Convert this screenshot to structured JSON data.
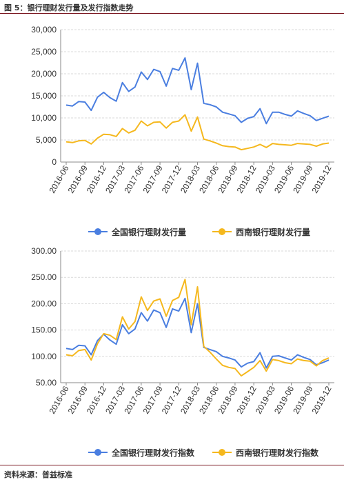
{
  "figure": {
    "title": "图 5：银行理财发行量及发行指数走势",
    "source": "资料来源：普益标准"
  },
  "colors": {
    "national": "#4a7ee0",
    "southwest": "#f5b81e",
    "rule": "#7a1620",
    "grid": "#d9d9d9"
  },
  "chart_data": [
    {
      "type": "line",
      "title": "",
      "xlabel": "",
      "ylabel": "",
      "ylim": [
        0,
        30000
      ],
      "yticks": [
        "0",
        "5,000",
        "10,000",
        "15,000",
        "20,000",
        "25,000",
        "30,000"
      ],
      "ytick_values": [
        0,
        5000,
        10000,
        15000,
        20000,
        25000,
        30000
      ],
      "xtick_labels": [
        "2016-06",
        "2016-09",
        "2016-12",
        "2017-03",
        "2017-06",
        "2017-09",
        "2017-12",
        "2018-03",
        "2018-06",
        "2018-09",
        "2018-12",
        "2019-03",
        "2019-06",
        "2019-09",
        "2019-12"
      ],
      "x": [
        "2016-06",
        "2016-07",
        "2016-08",
        "2016-09",
        "2016-10",
        "2016-11",
        "2016-12",
        "2017-01",
        "2017-02",
        "2017-03",
        "2017-04",
        "2017-05",
        "2017-06",
        "2017-07",
        "2017-08",
        "2017-09",
        "2017-10",
        "2017-11",
        "2017-12",
        "2018-01",
        "2018-02",
        "2018-03",
        "2018-04",
        "2018-05",
        "2018-06",
        "2018-07",
        "2018-08",
        "2018-09",
        "2018-10",
        "2018-11",
        "2018-12",
        "2019-01",
        "2019-02",
        "2019-03",
        "2019-04",
        "2019-05",
        "2019-06",
        "2019-07",
        "2019-08",
        "2019-09",
        "2019-10",
        "2019-11",
        "2019-12"
      ],
      "grid": "horizontal",
      "legend": "bottom",
      "series": [
        {
          "name": "全国银行理财发行量",
          "color": "#4a7ee0",
          "values": [
            12900,
            12700,
            13700,
            13600,
            11700,
            14700,
            15800,
            14600,
            13800,
            18000,
            16000,
            17000,
            20400,
            18700,
            21000,
            20500,
            17200,
            21200,
            20800,
            23600,
            16400,
            22400,
            13300,
            13000,
            12500,
            11300,
            10900,
            10500,
            9000,
            9900,
            10300,
            12100,
            8700,
            11300,
            11300,
            10800,
            10400,
            11600,
            11000,
            10500,
            9400,
            9900,
            10400
          ]
        },
        {
          "name": "西南银行理财发行量",
          "color": "#f5b81e",
          "values": [
            4600,
            4400,
            4800,
            4900,
            4100,
            5400,
            6300,
            6200,
            5800,
            7600,
            6600,
            7200,
            9300,
            8200,
            9000,
            9100,
            7700,
            9000,
            9300,
            10700,
            7000,
            10200,
            5200,
            4800,
            4300,
            3700,
            3500,
            3400,
            2800,
            3100,
            3400,
            4000,
            3300,
            4200,
            4000,
            3900,
            3800,
            4200,
            4100,
            4000,
            3600,
            4100,
            4300
          ]
        }
      ]
    },
    {
      "type": "line",
      "title": "",
      "xlabel": "",
      "ylabel": "",
      "ylim": [
        50,
        300
      ],
      "yticks": [
        "50.00",
        "100.00",
        "150.00",
        "200.00",
        "250.00",
        "300.00"
      ],
      "ytick_values": [
        50,
        100,
        150,
        200,
        250,
        300
      ],
      "xtick_labels": [
        "2016-06",
        "2016-09",
        "2016-12",
        "2017-03",
        "2017-06",
        "2017-09",
        "2017-12",
        "2018-03",
        "2018-06",
        "2018-09",
        "2018-12",
        "2019-03",
        "2019-06",
        "2019-09",
        "2019-12"
      ],
      "x": [
        "2016-06",
        "2016-07",
        "2016-08",
        "2016-09",
        "2016-10",
        "2016-11",
        "2016-12",
        "2017-01",
        "2017-02",
        "2017-03",
        "2017-04",
        "2017-05",
        "2017-06",
        "2017-07",
        "2017-08",
        "2017-09",
        "2017-10",
        "2017-11",
        "2017-12",
        "2018-01",
        "2018-02",
        "2018-03",
        "2018-04",
        "2018-05",
        "2018-06",
        "2018-07",
        "2018-08",
        "2018-09",
        "2018-10",
        "2018-11",
        "2018-12",
        "2019-01",
        "2019-02",
        "2019-03",
        "2019-04",
        "2019-05",
        "2019-06",
        "2019-07",
        "2019-08",
        "2019-09",
        "2019-10",
        "2019-11",
        "2019-12"
      ],
      "grid": "horizontal",
      "legend": "bottom",
      "series": [
        {
          "name": "全国银行理财发行指数",
          "color": "#4a7ee0",
          "values": [
            115,
            113,
            121,
            120,
            103,
            130,
            142,
            131,
            123,
            160,
            143,
            152,
            183,
            167,
            188,
            183,
            155,
            190,
            186,
            210,
            145,
            200,
            117,
            113,
            109,
            100,
            97,
            93,
            80,
            87,
            90,
            107,
            78,
            100,
            101,
            97,
            93,
            103,
            98,
            94,
            84,
            88,
            93
          ]
        },
        {
          "name": "西南银行理财发行指数",
          "color": "#f5b81e",
          "values": [
            103,
            101,
            111,
            113,
            93,
            124,
            143,
            140,
            132,
            175,
            152,
            166,
            213,
            187,
            205,
            209,
            176,
            206,
            212,
            246,
            160,
            232,
            119,
            108,
            95,
            83,
            79,
            77,
            63,
            71,
            79,
            92,
            72,
            94,
            92,
            88,
            86,
            95,
            92,
            91,
            82,
            92,
            97
          ]
        }
      ]
    }
  ]
}
